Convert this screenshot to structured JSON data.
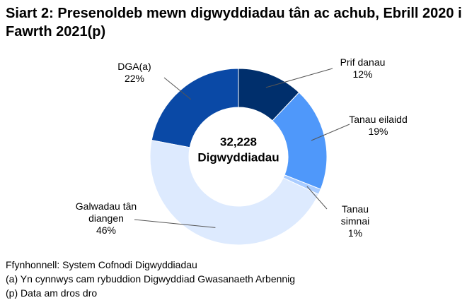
{
  "chart_data": {
    "type": "donut",
    "title": "Siart 2: Presenoldeb mewn digwyddiadau tân ac achub, Ebrill 2020 i Fawrth 2021(p)",
    "categories": [
      "Prif danau",
      "Tanau eilaidd",
      "Tanau simnai",
      "Galwadau tân diangen",
      "DGA(a)"
    ],
    "values": [
      12,
      19,
      1,
      46,
      22
    ],
    "value_labels": [
      "12%",
      "19%",
      "1%",
      "46%",
      "22%"
    ],
    "colors": [
      "#002f6c",
      "#4f98fa",
      "#a9ccff",
      "#ddeafe",
      "#0a49a6"
    ],
    "total": {
      "value": 32228,
      "label": "32,228"
    },
    "total_label": "Digwyddiadau",
    "source": "Ffynhonnell: System Cofnodi Digwyddiadau",
    "notes": [
      "(a) Yn cynnwys cam rybuddion Digwyddiad Gwasanaeth Arbennig",
      "(p) Data am dros dro"
    ]
  }
}
